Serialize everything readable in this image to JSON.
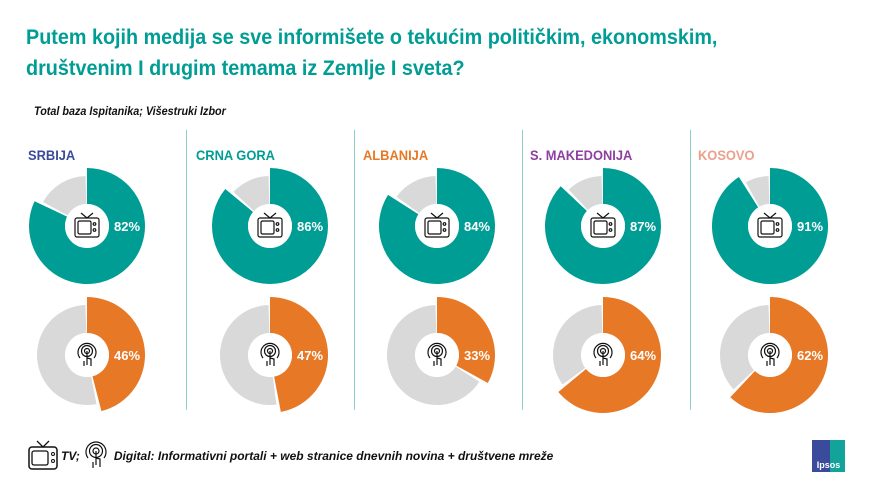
{
  "title": "Putem kojih medija se sve informišete o tekućim političkim, ekonomskim, društvenim I drugim temama iz Zemlje I sveta?",
  "subtitle": "Total baza Ispitanika; Višestruki Izbor",
  "legend": {
    "tv_label": "TV;",
    "digital_label": "Digital: Informativni portali + web stranice dnevnih novina + društvene mreže"
  },
  "logo_text": "Ipsos",
  "colors": {
    "tv": "#009d94",
    "digital": "#e67826",
    "rest": "#d9d9d9",
    "title": "#009d94"
  },
  "chart_data": {
    "type": "donut",
    "categories": [
      "SRBIJA",
      "CRNA GORA",
      "ALBANIJA",
      "S. MAKEDONIJA",
      "KOSOVO"
    ],
    "category_colors": [
      "#3a4b9c",
      "#009d94",
      "#e67826",
      "#8e3fa0",
      "#eba08c"
    ],
    "series": [
      {
        "name": "TV",
        "icon": "tv-icon",
        "values": [
          82,
          86,
          84,
          87,
          91
        ],
        "labels": [
          "82%",
          "86%",
          "84%",
          "87%",
          "91%"
        ]
      },
      {
        "name": "Digital",
        "icon": "touch-icon",
        "values": [
          46,
          47,
          33,
          64,
          62
        ],
        "labels": [
          "46%",
          "47%",
          "33%",
          "64%",
          "62%"
        ]
      }
    ]
  }
}
